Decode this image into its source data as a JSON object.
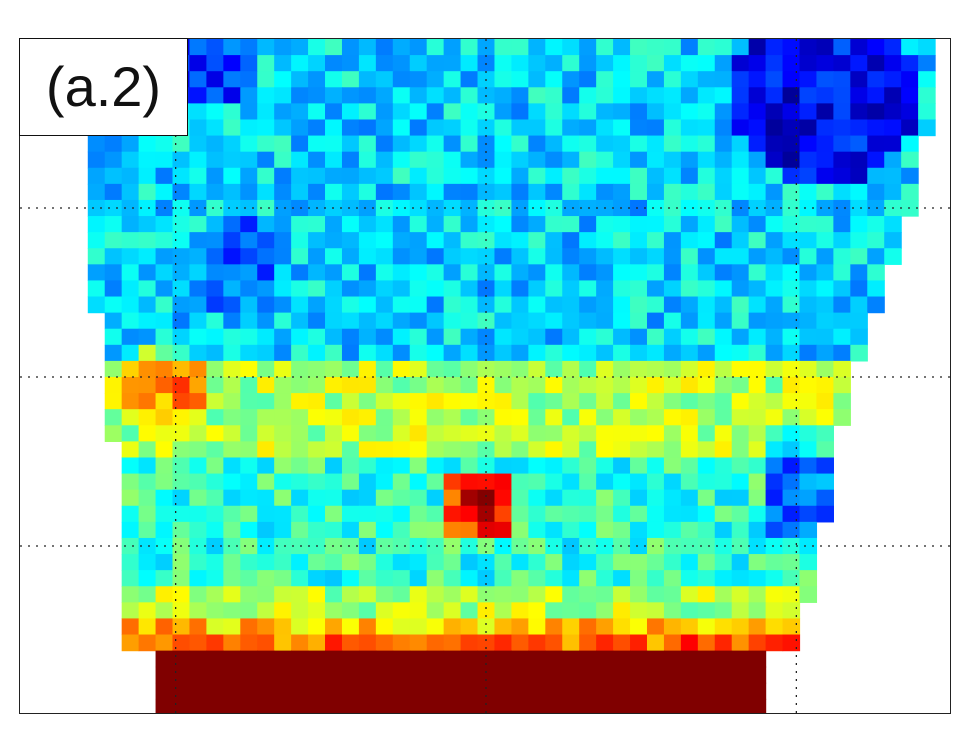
{
  "panel_label": "(a.2)",
  "colormap": "jet",
  "chart_data": {
    "type": "heatmap",
    "title": "",
    "xlabel": "",
    "ylabel": "",
    "grid": true,
    "grid_style": "dotted",
    "colormap": "jet",
    "value_range": [
      0,
      1
    ],
    "grid_lines": {
      "x_fraction": [
        0.167,
        0.5,
        0.833
      ],
      "y_fraction": [
        0.25,
        0.5,
        0.75
      ]
    },
    "n_cols": 55,
    "n_rows": 42,
    "features": [
      {
        "name": "cool-blue-cluster-top-right",
        "value": 0.08
      },
      {
        "name": "hot-spot-center",
        "value": 0.95
      },
      {
        "name": "warm-band-middle",
        "value": 0.62
      },
      {
        "name": "saturated-bottom-band",
        "value": 1.0
      }
    ]
  }
}
